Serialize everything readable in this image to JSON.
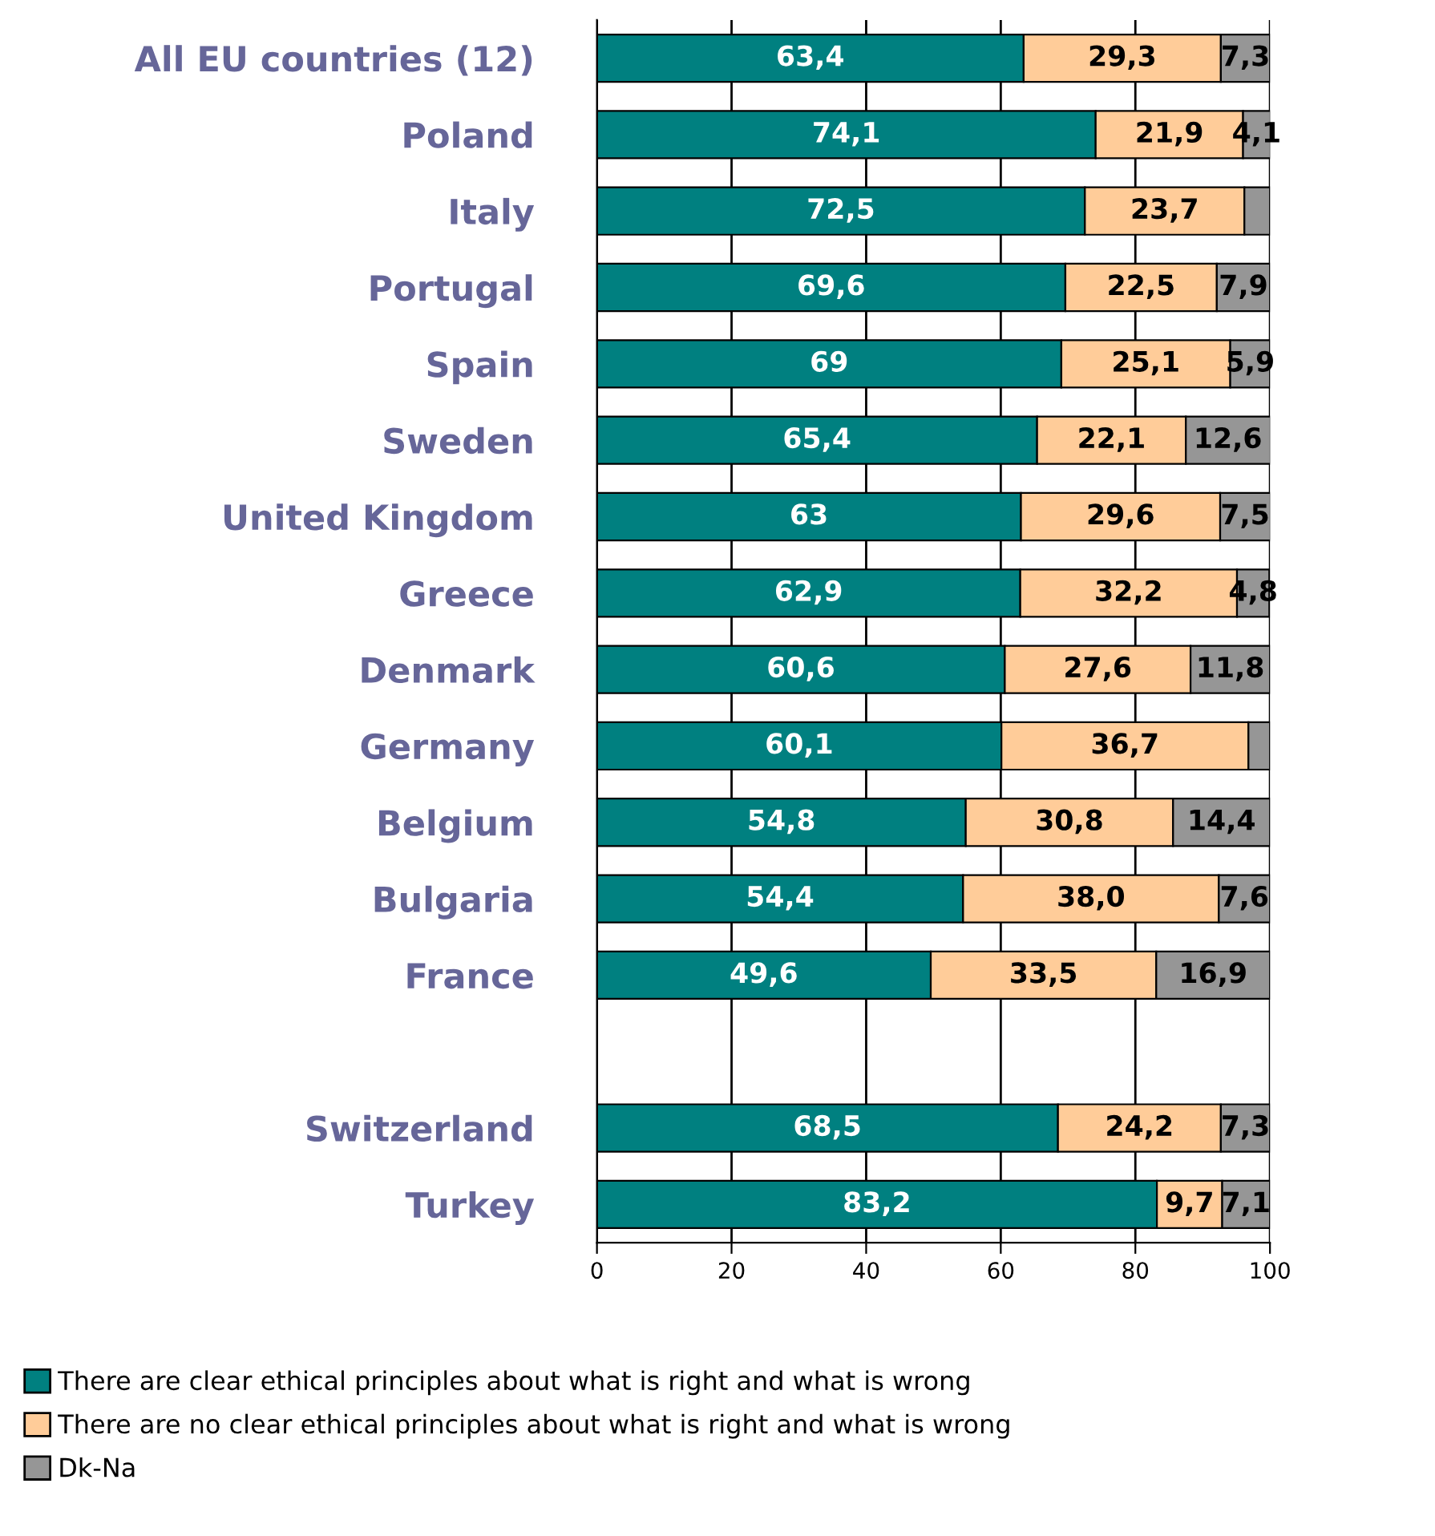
{
  "chart_data": {
    "type": "bar",
    "orientation": "horizontal",
    "stacked": true,
    "categories": [
      "All EU countries (12)",
      "Poland",
      "Italy",
      "Portugal",
      "Spain",
      "Sweden",
      "United Kingdom",
      "Greece",
      "Denmark",
      "Germany",
      "Belgium",
      "Bulgaria",
      "France",
      null,
      "Switzerland",
      "Turkey"
    ],
    "series": [
      {
        "name": "There are clear ethical principles about what is right and what is wrong",
        "color": "#008080",
        "values": [
          63.4,
          74.1,
          72.5,
          69.6,
          69,
          65.4,
          63,
          62.9,
          60.6,
          60.1,
          54.8,
          54.4,
          49.6,
          null,
          68.5,
          83.2
        ],
        "value_labels": [
          "63,4",
          "74,1",
          "72,5",
          "69,6",
          "69",
          "65,4",
          "63",
          "62,9",
          "60,6",
          "60,1",
          "54,8",
          "54,4",
          "49,6",
          null,
          "68,5",
          "83,2"
        ]
      },
      {
        "name": "There are no clear ethical principles about what is right and what is wrong",
        "color": "#ffcc99",
        "values": [
          29.3,
          21.9,
          23.7,
          22.5,
          25.1,
          22.1,
          29.6,
          32.2,
          27.6,
          36.7,
          30.8,
          38.0,
          33.5,
          null,
          24.2,
          9.7
        ],
        "value_labels": [
          "29,3",
          "21,9",
          "23,7",
          "22,5",
          "25,1",
          "22,1",
          "29,6",
          "32,2",
          "27,6",
          "36,7",
          "30,8",
          "38,0",
          "33,5",
          null,
          "24,2",
          "9,7"
        ]
      },
      {
        "name": "Dk-Na",
        "color": "#969696",
        "values": [
          7.3,
          4.1,
          3.8,
          7.9,
          5.9,
          12.6,
          7.5,
          4.8,
          11.8,
          3.2,
          14.4,
          7.6,
          16.9,
          null,
          7.3,
          7.1
        ],
        "value_labels": [
          "7,3",
          "4,1",
          null,
          "7,9",
          "5,9",
          "12,6",
          "7,5",
          "4,8",
          "11,8",
          null,
          "14,4",
          "7,6",
          "16,9",
          null,
          "7,3",
          "7,1"
        ]
      }
    ],
    "xlim": [
      0,
      100
    ],
    "xticks": [
      0,
      20,
      40,
      60,
      80,
      100
    ],
    "grid": "x",
    "legend": "bottom"
  }
}
